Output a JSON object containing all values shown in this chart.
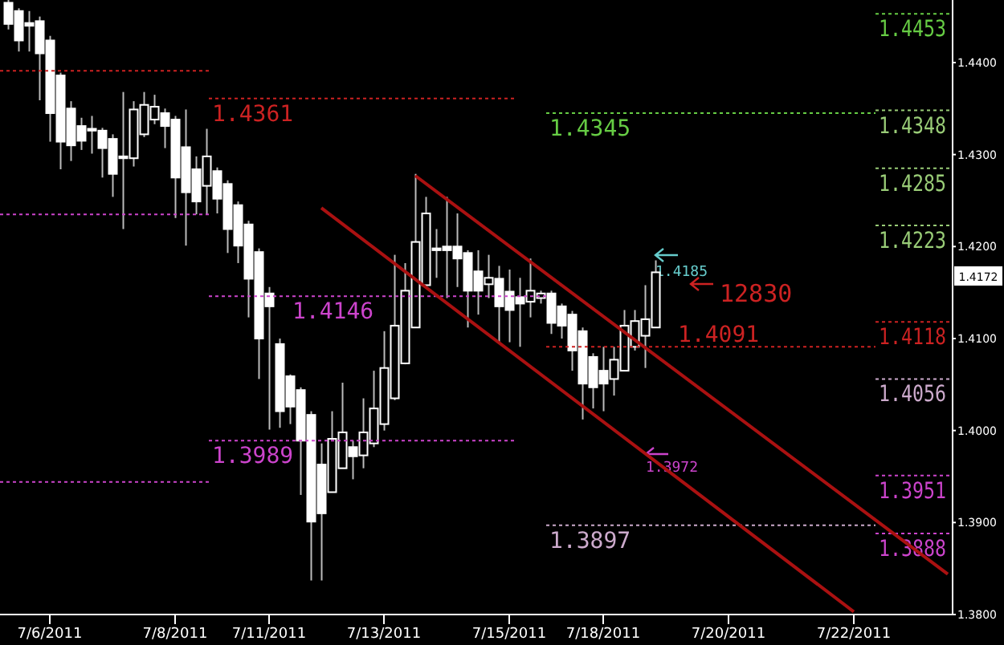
{
  "chart_data": {
    "type": "candlestick",
    "categories": [
      null,
      null,
      null,
      null,
      "7/6/2011",
      null,
      null,
      null,
      null,
      null,
      null,
      null,
      null,
      null,
      null,
      null,
      "7/8/2011",
      null,
      null,
      null,
      null,
      null,
      null,
      null,
      null,
      "7/11/2011",
      null,
      null,
      null,
      null,
      null,
      null,
      null,
      null,
      null,
      null,
      "7/13/2011",
      null,
      null,
      null,
      null,
      null,
      null,
      null,
      null,
      null,
      null,
      null,
      "7/15/2011",
      null,
      null,
      null,
      null,
      null,
      null,
      null,
      null,
      "7/18/2011",
      null,
      null,
      null,
      null,
      null,
      null,
      null,
      null,
      null,
      null,
      null,
      "7/20/2011",
      null,
      null,
      null,
      null,
      null,
      null,
      null,
      null,
      null,
      null,
      null,
      "7/22/2011",
      null,
      null,
      null,
      null,
      null,
      null,
      null,
      null,
      null
    ],
    "ohlc": [
      [
        1.4465,
        1.4468,
        1.4436,
        1.4442
      ],
      [
        1.4456,
        1.4459,
        1.4412,
        1.4424
      ],
      [
        1.4443,
        1.4456,
        1.4412,
        1.444
      ],
      [
        1.4445,
        1.445,
        1.4359,
        1.441
      ],
      [
        1.4424,
        1.4429,
        1.4314,
        1.4345
      ],
      [
        1.4386,
        1.4389,
        1.4284,
        1.4314
      ],
      [
        1.435,
        1.4358,
        1.4293,
        1.431
      ],
      [
        1.4331,
        1.434,
        1.4305,
        1.4315
      ],
      [
        1.4328,
        1.4342,
        1.4301,
        1.4326
      ],
      [
        1.4326,
        1.4329,
        1.4275,
        1.4307
      ],
      [
        1.4317,
        1.4322,
        1.4254,
        1.4279
      ],
      [
        1.4298,
        1.4368,
        1.4219,
        1.4296
      ],
      [
        1.4296,
        1.4358,
        1.4287,
        1.4349
      ],
      [
        1.4322,
        1.4368,
        1.4319,
        1.4354
      ],
      [
        1.4338,
        1.4365,
        1.4333,
        1.4352
      ],
      [
        1.4345,
        1.435,
        1.4307,
        1.4331
      ],
      [
        1.4338,
        1.4342,
        1.4231,
        1.4275
      ],
      [
        1.4308,
        1.4349,
        1.4201,
        1.4259
      ],
      [
        1.4284,
        1.4298,
        1.4235,
        1.4249
      ],
      [
        1.4266,
        1.4328,
        1.4235,
        1.4298
      ],
      [
        1.4282,
        1.4286,
        1.4236,
        1.4252
      ],
      [
        1.4268,
        1.4272,
        1.4193,
        1.4219
      ],
      [
        1.4245,
        1.4249,
        1.4182,
        1.4201
      ],
      [
        1.4224,
        1.4228,
        1.4123,
        1.4165
      ],
      [
        1.4194,
        1.4198,
        1.4056,
        1.41
      ],
      [
        1.4149,
        1.4156,
        1.4001,
        1.4135
      ],
      [
        1.4094,
        1.41,
        1.4003,
        1.4021
      ],
      [
        1.4059,
        1.4061,
        1.4007,
        1.4026
      ],
      [
        1.4044,
        1.4047,
        1.393,
        1.3989
      ],
      [
        1.4017,
        1.4021,
        1.3837,
        1.3901
      ],
      [
        1.3963,
        1.3986,
        1.3837,
        1.391
      ],
      [
        1.3933,
        1.4021,
        1.3933,
        1.3991
      ],
      [
        1.3959,
        1.4052,
        1.3959,
        1.3998
      ],
      [
        1.3982,
        1.3989,
        1.3947,
        1.3972
      ],
      [
        1.3973,
        1.4035,
        1.3959,
        1.3998
      ],
      [
        1.3986,
        1.4065,
        1.3982,
        1.4024
      ],
      [
        1.4007,
        1.4108,
        1.4,
        1.4068
      ],
      [
        1.4035,
        1.4191,
        1.4033,
        1.4114
      ],
      [
        1.4073,
        1.4182,
        1.4072,
        1.4152
      ],
      [
        1.4112,
        1.4279,
        1.4112,
        1.4205
      ],
      [
        1.4158,
        1.4254,
        1.4156,
        1.4236
      ],
      [
        1.4198,
        1.4219,
        1.4166,
        1.4196
      ],
      [
        1.42,
        1.4254,
        1.4144,
        1.4196
      ],
      [
        1.42,
        1.4236,
        1.4156,
        1.4187
      ],
      [
        1.4193,
        1.4196,
        1.4112,
        1.4152
      ],
      [
        1.4173,
        1.4196,
        1.4126,
        1.4152
      ],
      [
        1.4159,
        1.4191,
        1.4144,
        1.4166
      ],
      [
        1.4165,
        1.4179,
        1.4094,
        1.4135
      ],
      [
        1.4151,
        1.4175,
        1.4096,
        1.4131
      ],
      [
        1.4145,
        1.4166,
        1.4091,
        1.4138
      ],
      [
        1.414,
        1.4187,
        1.4123,
        1.4152
      ],
      [
        1.4144,
        1.4152,
        1.4138,
        1.4149
      ],
      [
        1.4149,
        1.4152,
        1.4105,
        1.4117
      ],
      [
        1.4135,
        1.4138,
        1.41,
        1.4114
      ],
      [
        1.4126,
        1.413,
        1.4065,
        1.4087
      ],
      [
        1.4108,
        1.4112,
        1.4012,
        1.4051
      ],
      [
        1.408,
        1.4084,
        1.4024,
        1.4047
      ],
      [
        1.4065,
        1.4091,
        1.4021,
        1.4051
      ],
      [
        1.4056,
        1.4091,
        1.4038,
        1.4077
      ],
      [
        1.4065,
        1.4131,
        1.4065,
        1.4114
      ],
      [
        1.4091,
        1.4131,
        1.4087,
        1.4119
      ],
      [
        1.4103,
        1.4158,
        1.4068,
        1.4121
      ],
      [
        1.4112,
        1.4185,
        1.4112,
        1.4172
      ],
      null,
      null,
      null,
      null,
      null,
      null,
      null,
      null,
      null,
      null,
      null,
      null,
      null,
      null,
      null,
      null,
      null,
      null,
      null,
      null,
      null,
      null,
      null,
      null,
      null,
      null,
      null,
      null
    ],
    "series": [
      {
        "type": "line",
        "color": "#aa1111",
        "values": [
          null,
          null,
          null,
          null,
          null,
          null,
          null,
          null,
          null,
          null,
          null,
          null,
          null,
          null,
          null,
          null,
          null,
          null,
          null,
          null,
          null,
          null,
          null,
          null,
          null,
          null,
          null,
          null,
          null,
          null,
          null,
          null,
          null,
          null,
          null,
          null,
          null,
          null,
          null,
          1.4277,
          null,
          null,
          null,
          null,
          null,
          null,
          null,
          null,
          null,
          null,
          null,
          null,
          null,
          null,
          null,
          null,
          null,
          null,
          null,
          null,
          null,
          null,
          null,
          null,
          null,
          null,
          null,
          null,
          null,
          null,
          null,
          null,
          null,
          null,
          null,
          null,
          null,
          null,
          null,
          null,
          null,
          null,
          null,
          null,
          null,
          null,
          null,
          null,
          null,
          null,
          1.3844
        ]
      },
      {
        "type": "line",
        "color": "#aa1111",
        "values": [
          null,
          null,
          null,
          null,
          null,
          null,
          null,
          null,
          null,
          null,
          null,
          null,
          null,
          null,
          null,
          null,
          null,
          null,
          null,
          null,
          null,
          null,
          null,
          null,
          null,
          null,
          null,
          null,
          null,
          null,
          1.4242,
          null,
          null,
          null,
          null,
          null,
          null,
          null,
          null,
          null,
          null,
          null,
          null,
          null,
          null,
          null,
          null,
          null,
          null,
          null,
          null,
          null,
          null,
          null,
          null,
          null,
          null,
          null,
          null,
          null,
          null,
          null,
          null,
          null,
          null,
          null,
          null,
          null,
          null,
          null,
          null,
          null,
          null,
          null,
          null,
          null,
          null,
          null,
          null,
          null,
          null,
          1.3803,
          null,
          null,
          null,
          null,
          null,
          null,
          null,
          null,
          null
        ]
      }
    ],
    "ylim": [
      1.38,
      1.4468
    ],
    "yticks": [
      {
        "value": 1.38,
        "label": "1.3800"
      },
      {
        "value": 1.39,
        "label": "1.3900"
      },
      {
        "value": 1.4,
        "label": "1.4000"
      },
      {
        "value": 1.41,
        "label": "1.4100"
      },
      {
        "value": 1.42,
        "label": "1.4200"
      },
      {
        "value": 1.43,
        "label": "1.4300"
      },
      {
        "value": 1.44,
        "label": "1.4400"
      }
    ],
    "ref_lines": [
      {
        "axis": "y",
        "value": 1.4391,
        "label": null,
        "color": "#cc2222",
        "line_style": "dotted"
      },
      {
        "axis": "y",
        "value": 1.4361,
        "label": "1.4361",
        "color": "#cc2222",
        "line_style": "dotted"
      },
      {
        "axis": "y",
        "value": 1.4235,
        "label": null,
        "color": "#cc44cc",
        "line_style": "dotted"
      },
      {
        "axis": "y",
        "value": 1.4146,
        "label": "1.4146",
        "color": "#cc44cc",
        "line_style": "dotted"
      },
      {
        "axis": "y",
        "value": 1.3989,
        "label": "1.3989",
        "color": "#cc44cc",
        "line_style": "dotted"
      },
      {
        "axis": "y",
        "value": 1.3944,
        "label": null,
        "color": "#cc44cc",
        "line_style": "dotted"
      },
      {
        "axis": "y",
        "value": 1.4345,
        "label": "1.4345",
        "color": "#66cc44",
        "line_style": "dotted"
      },
      {
        "axis": "y",
        "value": 1.4091,
        "label": "1.4091",
        "color": "#cc2222",
        "line_style": "dotted"
      },
      {
        "axis": "y",
        "value": 1.3897,
        "label": "1.3897",
        "color": "#ccaacc",
        "line_style": "dotted"
      },
      {
        "axis": "y",
        "value": 1.4453,
        "label": "1.4453",
        "color": "#66cc44",
        "line_style": "dotted"
      },
      {
        "axis": "y",
        "value": 1.4348,
        "label": "1.4348",
        "color": "#99cc77",
        "line_style": "dotted"
      },
      {
        "axis": "y",
        "value": 1.4285,
        "label": "1.4285",
        "color": "#99cc77",
        "line_style": "dotted"
      },
      {
        "axis": "y",
        "value": 1.4223,
        "label": "1.4223",
        "color": "#99cc77",
        "line_style": "dotted"
      },
      {
        "axis": "y",
        "value": 1.4118,
        "label": "1.4118",
        "color": "#cc2222",
        "line_style": "dotted"
      },
      {
        "axis": "y",
        "value": 1.4056,
        "label": "1.4056",
        "color": "#ccaacc",
        "line_style": "dotted"
      },
      {
        "axis": "y",
        "value": 1.3951,
        "label": "1.3951",
        "color": "#cc44cc",
        "line_style": "dotted"
      },
      {
        "axis": "y",
        "value": 1.3888,
        "label": "1.3888",
        "color": "#cc44cc",
        "line_style": "dotted"
      }
    ],
    "annotations": [
      "1.4185",
      "12830",
      "1.3972",
      "1.4172"
    ]
  }
}
